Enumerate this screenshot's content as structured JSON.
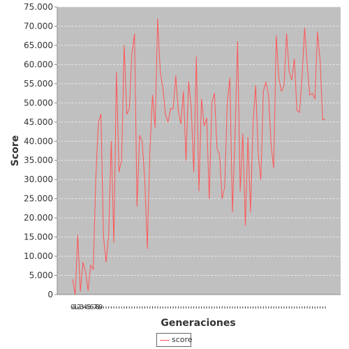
{
  "chart_data": {
    "type": "line",
    "title": "",
    "xlabel": "Generaciones",
    "ylabel": "Score",
    "ylim": [
      0,
      75000
    ],
    "yticks": [
      "0",
      "5.000",
      "10.000",
      "15.000",
      "20.000",
      "25.000",
      "30.000",
      "35.000",
      "40.000",
      "45.000",
      "50.000",
      "55.000",
      "60.000",
      "65.000",
      "70.000",
      "75.000"
    ],
    "xticks": [
      "0",
      "1",
      "2",
      "3",
      "4",
      "5",
      "6",
      "7",
      "8",
      "9"
    ],
    "grid": true,
    "legend_position": "bottom",
    "colors": {
      "plot_bg": "#c0c0c0",
      "line": "#ff5555",
      "grid": "#e8e8e8"
    },
    "series": [
      {
        "name": "score",
        "values": [
          4000,
          0,
          15500,
          800,
          8400,
          6000,
          1000,
          7700,
          6500,
          30000,
          45000,
          47000,
          15000,
          8500,
          15600,
          40000,
          13500,
          58000,
          32000,
          35000,
          65000,
          47000,
          48500,
          63000,
          68000,
          23000,
          41500,
          40000,
          30000,
          12000,
          38000,
          52000,
          43500,
          72000,
          58000,
          54000,
          47000,
          45000,
          48500,
          48500,
          57000,
          48000,
          44500,
          53000,
          35000,
          55500,
          49000,
          32000,
          62000,
          27000,
          51000,
          44000,
          46000,
          25000,
          50000,
          52500,
          38000,
          36500,
          25000,
          28000,
          50000,
          56500,
          21500,
          41500,
          66000,
          27000,
          42000,
          18000,
          41000,
          21500,
          45000,
          54500,
          36500,
          30000,
          53000,
          55500,
          52000,
          39000,
          33000,
          67500,
          56500,
          53000,
          54500,
          68000,
          58000,
          56000,
          61500,
          48000,
          47500,
          57000,
          69500,
          60000,
          52000,
          52500,
          51000,
          68500,
          61000,
          45600,
          45700
        ]
      }
    ]
  }
}
